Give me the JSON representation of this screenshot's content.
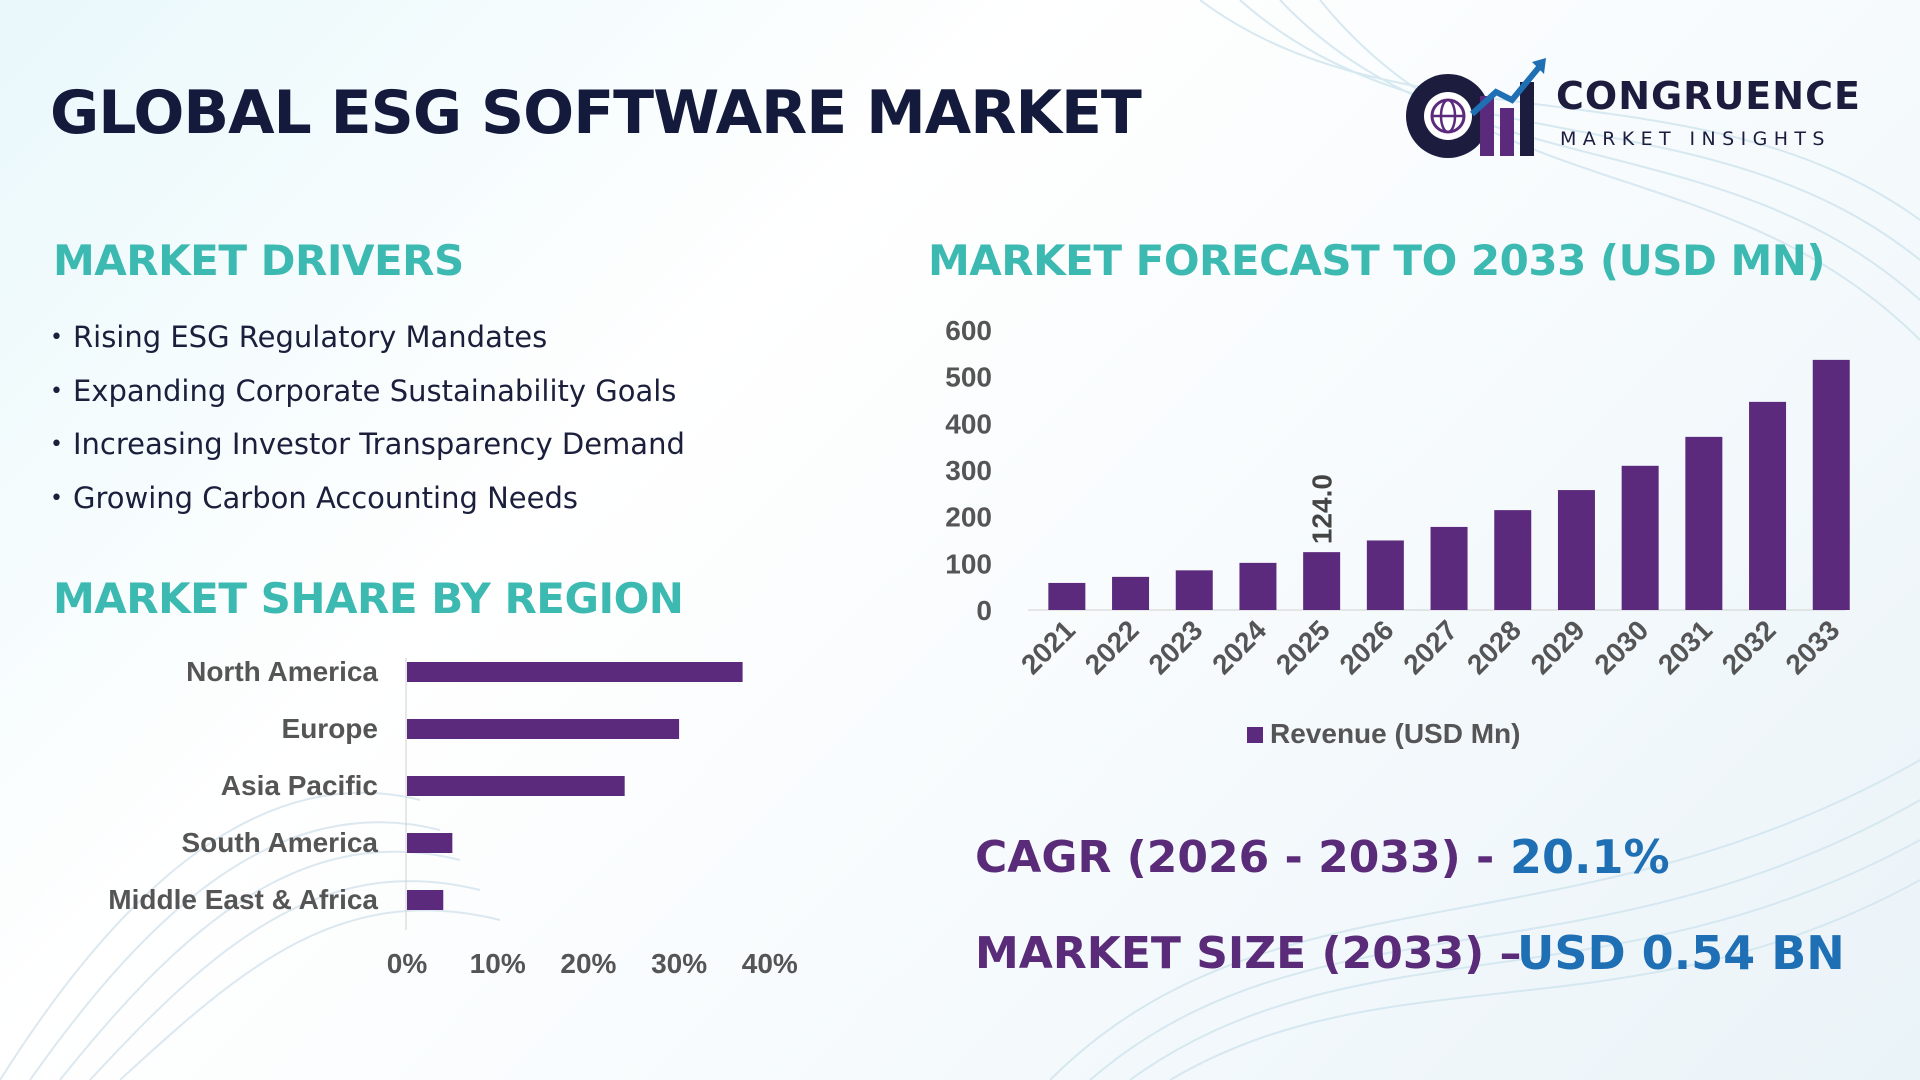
{
  "header": {
    "title": "GLOBAL ESG SOFTWARE MARKET",
    "logo_name": "CONGRUENCE",
    "logo_sub": "MARKET INSIGHTS"
  },
  "drivers": {
    "heading": "MARKET DRIVERS",
    "items": [
      "Rising ESG Regulatory Mandates",
      "Expanding Corporate Sustainability Goals",
      "Increasing Investor Transparency Demand",
      "Growing Carbon Accounting Needs"
    ]
  },
  "regions": {
    "heading": "MARKET SHARE BY REGION"
  },
  "forecast": {
    "heading": "MARKET FORECAST TO 2033 (USD MN)"
  },
  "stats": {
    "cagr_label": "CAGR (2026 - 2033) -",
    "cagr_value": "20.1%",
    "size_label": "MARKET SIZE (2033) –",
    "size_value": "USD 0.54 BN"
  },
  "colors": {
    "bar": "#5b2a7d",
    "heading_teal": "#3cb9b1",
    "title_navy": "#141a3c",
    "stat_purple": "#5a2b78",
    "stat_blue": "#1f6fb5"
  },
  "chart_data": [
    {
      "type": "bar",
      "orientation": "horizontal",
      "categories": [
        "North America",
        "Europe",
        "Asia Pacific",
        "South America",
        "Middle East & Africa"
      ],
      "values": [
        37,
        30,
        24,
        5,
        4
      ],
      "xlim": [
        0,
        40
      ],
      "x_ticks": [
        "0%",
        "10%",
        "20%",
        "30%",
        "40%"
      ],
      "grid": false,
      "legend": "none"
    },
    {
      "type": "bar",
      "orientation": "vertical",
      "categories": [
        "2021",
        "2022",
        "2023",
        "2024",
        "2025",
        "2026",
        "2027",
        "2028",
        "2029",
        "2030",
        "2031",
        "2032",
        "2033"
      ],
      "series": [
        {
          "name": "Revenue (USD Mn)",
          "values": [
            58,
            71,
            85,
            101,
            124,
            149,
            178,
            214,
            257,
            309,
            371,
            446,
            536
          ]
        }
      ],
      "annotations": [
        {
          "category": "2025",
          "text": "124.0"
        }
      ],
      "ylim": [
        0,
        600
      ],
      "y_ticks": [
        "0",
        "100",
        "200",
        "300",
        "400",
        "500",
        "600"
      ],
      "grid": false,
      "legend": "bottom"
    }
  ]
}
